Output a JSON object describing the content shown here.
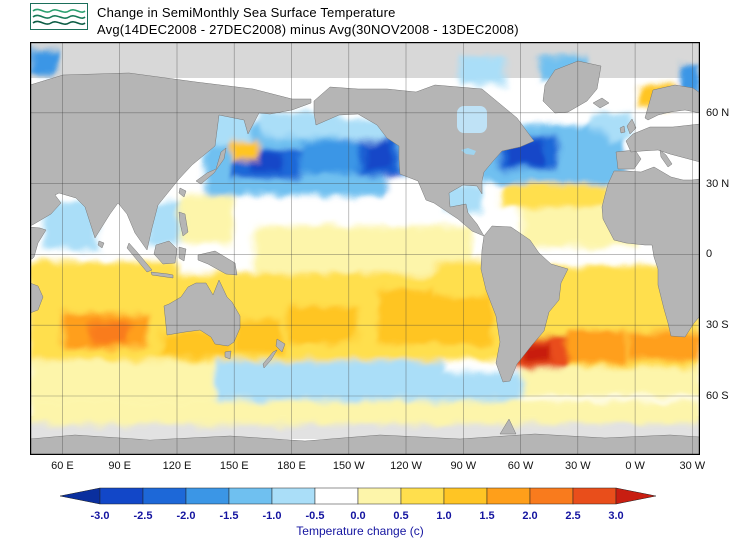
{
  "header": {
    "title_line1": "Change in SemiMonthly Sea Surface Temperature",
    "title_line2": "Avg(14DEC2008 - 27DEC2008) minus Avg(30NOV2008 - 13DEC2008)",
    "logo": "green-waves-logo"
  },
  "chart_data": {
    "type": "heatmap",
    "title": "Change in SemiMonthly Sea Surface Temperature",
    "subtitle": "Avg(14DEC2008 - 27DEC2008) minus Avg(30NOV2008 - 13DEC2008)",
    "lon_range": [
      43,
      394
    ],
    "lat_range": [
      -85,
      90
    ],
    "land_color": "#b5b5b5",
    "ocean_color": "#ffffff",
    "lat_ticks": [
      {
        "label": "60 N",
        "lat": 60
      },
      {
        "label": "30 N",
        "lat": 30
      },
      {
        "label": "0",
        "lat": 0
      },
      {
        "label": "30 S",
        "lat": -30
      },
      {
        "label": "60 S",
        "lat": -60
      }
    ],
    "lon_ticks": [
      {
        "label": "60 E",
        "lon": 60
      },
      {
        "label": "90 E",
        "lon": 90
      },
      {
        "label": "120 E",
        "lon": 120
      },
      {
        "label": "150 E",
        "lon": 150
      },
      {
        "label": "180 E",
        "lon": 180
      },
      {
        "label": "150 W",
        "lon": 210
      },
      {
        "label": "120 W",
        "lon": 240
      },
      {
        "label": "90 W",
        "lon": 270
      },
      {
        "label": "60 W",
        "lon": 300
      },
      {
        "label": "30 W",
        "lon": 330
      },
      {
        "label": "0 W",
        "lon": 360
      },
      {
        "label": "30 W",
        "lon": 390
      }
    ],
    "colorbar": {
      "label": "Temperature change  (c)",
      "ticks": [
        "-3.0",
        "-2.5",
        "-2.0",
        "-1.5",
        "-1.0",
        "-0.5",
        "0.0",
        "0.5",
        "1.0",
        "1.5",
        "2.0",
        "2.5",
        "3.0"
      ],
      "levels": [
        -3,
        -2.5,
        -2,
        -1.5,
        -1,
        -0.5,
        0,
        0.5,
        1,
        1.5,
        2,
        2.5,
        3
      ],
      "colors": [
        "#0a2f9e",
        "#1247c8",
        "#1d68d8",
        "#3b96e6",
        "#6fc0f0",
        "#aadef8",
        "#ffffff",
        "#fdf5aa",
        "#ffdf4d",
        "#ffc524",
        "#ff9f1a",
        "#f97b1d",
        "#e94e1b",
        "#c81e11"
      ],
      "text_color": "#1414a0"
    },
    "anomaly_regions": [
      {
        "name": "south-indian-warm-base",
        "lon": [
          43,
          120
        ],
        "lat": [
          -45,
          -3
        ],
        "value": 0.7
      },
      {
        "name": "south-pacific-warm-base",
        "lon": [
          120,
          300
        ],
        "lat": [
          -45,
          -8
        ],
        "value": 0.6
      },
      {
        "name": "south-atlantic-warm-base",
        "lon": [
          300,
          394
        ],
        "lat": [
          -48,
          -5
        ],
        "value": 0.7
      },
      {
        "name": "north-pacific-cool-base",
        "lon": [
          135,
          245
        ],
        "lat": [
          25,
          55
        ],
        "value": -1.1
      },
      {
        "name": "north-atlantic-cool-base",
        "lon": [
          280,
          355
        ],
        "lat": [
          30,
          55
        ],
        "value": -1.1
      },
      {
        "name": "ne-atlantic-cool",
        "lon": [
          337,
          358
        ],
        "lat": [
          48,
          60
        ],
        "value": -0.8
      },
      {
        "name": "arabian-sea-cool",
        "lon": [
          50,
          78
        ],
        "lat": [
          2,
          22
        ],
        "value": -0.6
      },
      {
        "name": "bay-of-bengal-cool",
        "lon": [
          80,
          100
        ],
        "lat": [
          4,
          20
        ],
        "value": -0.5
      },
      {
        "name": "south-china-sea-cool",
        "lon": [
          104,
          122
        ],
        "lat": [
          4,
          22
        ],
        "value": -0.6
      },
      {
        "name": "philippine-sea-neutral",
        "lon": [
          122,
          150
        ],
        "lat": [
          5,
          25
        ],
        "value": 0.2
      },
      {
        "name": "equatorial-pacific-neutral",
        "lon": [
          160,
          275
        ],
        "lat": [
          -8,
          12
        ],
        "value": 0.1
      },
      {
        "name": "tropical-atlantic-warm",
        "lon": [
          300,
          360
        ],
        "lat": [
          3,
          22
        ],
        "value": 0.4
      },
      {
        "name": "gulf-of-mexico-cool",
        "lon": [
          260,
          280
        ],
        "lat": [
          18,
          30
        ],
        "value": -0.6
      },
      {
        "name": "subtropical-atlantic-warm",
        "lon": [
          290,
          345
        ],
        "lat": [
          20,
          30
        ],
        "value": 0.5
      },
      {
        "name": "mediterranean-neutral",
        "lon": [
          356,
          394
        ],
        "lat": [
          31,
          44
        ],
        "value": -0.3
      },
      {
        "name": "southern-ocean-indian",
        "lon": [
          43,
          140
        ],
        "lat": [
          -62,
          -45
        ],
        "value": 0.3
      },
      {
        "name": "southern-ocean-pacific-cool",
        "lon": [
          140,
          260
        ],
        "lat": [
          -62,
          -45
        ],
        "value": -0.6
      },
      {
        "name": "southern-ocean-atlantic-warm",
        "lon": [
          300,
          394
        ],
        "lat": [
          -60,
          -48
        ],
        "value": 0.4
      },
      {
        "name": "drake-passage-cool",
        "lon": [
          255,
          300
        ],
        "lat": [
          -65,
          -50
        ],
        "value": -0.6
      },
      {
        "name": "antarctic-coastal-neutral",
        "lon": [
          43,
          394
        ],
        "lat": [
          -72,
          -62
        ],
        "value": 0.1
      },
      {
        "name": "nw-pacific-cold-core",
        "lon": [
          148,
          185
        ],
        "lat": [
          32,
          45
        ],
        "value": -2.2
      },
      {
        "name": "dateline-cold-core",
        "lon": [
          185,
          215
        ],
        "lat": [
          34,
          48
        ],
        "value": -1.6
      },
      {
        "name": "ne-pacific-cold-core",
        "lon": [
          215,
          237
        ],
        "lat": [
          33,
          50
        ],
        "value": -2.3
      },
      {
        "name": "nw-pacific-deep-spot",
        "lon": [
          158,
          175
        ],
        "lat": [
          35,
          43
        ],
        "value": -2.8
      },
      {
        "name": "ne-pacific-deep-spot",
        "lon": [
          218,
          233
        ],
        "lat": [
          36,
          47
        ],
        "value": -2.8
      },
      {
        "name": "bering-cool",
        "lon": [
          165,
          205
        ],
        "lat": [
          50,
          60
        ],
        "value": -0.8
      },
      {
        "name": "gulf-of-alaska-cool",
        "lon": [
          205,
          230
        ],
        "lat": [
          48,
          58
        ],
        "value": -0.6
      },
      {
        "name": "okhotsk-cool",
        "lon": [
          138,
          158
        ],
        "lat": [
          46,
          60
        ],
        "value": -0.6
      },
      {
        "name": "kuroshio-warm-spot",
        "lon": [
          148,
          163
        ],
        "lat": [
          40,
          48
        ],
        "value": 1.2
      },
      {
        "name": "california-coast-cool",
        "lon": [
          230,
          250
        ],
        "lat": [
          20,
          33
        ],
        "value": -0.5
      },
      {
        "name": "nw-atlantic-cold-core",
        "lon": [
          288,
          320
        ],
        "lat": [
          36,
          50
        ],
        "value": -2.2
      },
      {
        "name": "nw-atlantic-deep-spot",
        "lon": [
          292,
          312
        ],
        "lat": [
          38,
          48
        ],
        "value": -2.7
      },
      {
        "name": "central-atlantic-cold",
        "lon": [
          320,
          345
        ],
        "lat": [
          38,
          52
        ],
        "value": -1.3
      },
      {
        "name": "s-indian-warm-core",
        "lon": [
          60,
          105
        ],
        "lat": [
          -40,
          -25
        ],
        "value": 1.6
      },
      {
        "name": "s-indian-hot-spot",
        "lon": [
          75,
          95
        ],
        "lat": [
          -38,
          -28
        ],
        "value": 2.2
      },
      {
        "name": "australian-bight-warm",
        "lon": [
          112,
          148
        ],
        "lat": [
          -43,
          -33
        ],
        "value": 1.4
      },
      {
        "name": "tasman-warm",
        "lon": [
          150,
          175
        ],
        "lat": [
          -42,
          -28
        ],
        "value": 1.1
      },
      {
        "name": "s-pacific-warm-core",
        "lon": [
          178,
          215
        ],
        "lat": [
          -38,
          -22
        ],
        "value": 1.4
      },
      {
        "name": "se-pacific-warm",
        "lon": [
          225,
          285
        ],
        "lat": [
          -38,
          -15
        ],
        "value": 1.0
      },
      {
        "name": "peru-coast-warm",
        "lon": [
          255,
          282
        ],
        "lat": [
          -18,
          -3
        ],
        "value": 0.6
      },
      {
        "name": "argentine-hot-core",
        "lon": [
          295,
          325
        ],
        "lat": [
          -48,
          -35
        ],
        "value": 2.6
      },
      {
        "name": "argentine-red-spot",
        "lon": [
          300,
          316
        ],
        "lat": [
          -45,
          -38
        ],
        "value": 3.2
      },
      {
        "name": "s-atlantic-warm-core",
        "lon": [
          325,
          355
        ],
        "lat": [
          -46,
          -32
        ],
        "value": 1.8
      },
      {
        "name": "agulhas-warm",
        "lon": [
          356,
          394
        ],
        "lat": [
          -45,
          -33
        ],
        "value": 1.5
      },
      {
        "name": "kara-sea-cool-spot",
        "lon": [
          43,
          58
        ],
        "lat": [
          76,
          87
        ],
        "value": -1.6
      },
      {
        "name": "baffin-cool-spot",
        "lon": [
          268,
          292
        ],
        "lat": [
          72,
          84
        ],
        "value": -1.0
      },
      {
        "name": "greenland-sea-cool-spot",
        "lon": [
          310,
          335
        ],
        "lat": [
          74,
          84
        ],
        "value": -1.4
      },
      {
        "name": "norwegian-sea-warm-spot",
        "lon": [
          362,
          382
        ],
        "lat": [
          62,
          72
        ],
        "value": 1.2
      },
      {
        "name": "barents-cool-spot",
        "lon": [
          384,
          394
        ],
        "lat": [
          68,
          80
        ],
        "value": -1.6
      }
    ]
  }
}
